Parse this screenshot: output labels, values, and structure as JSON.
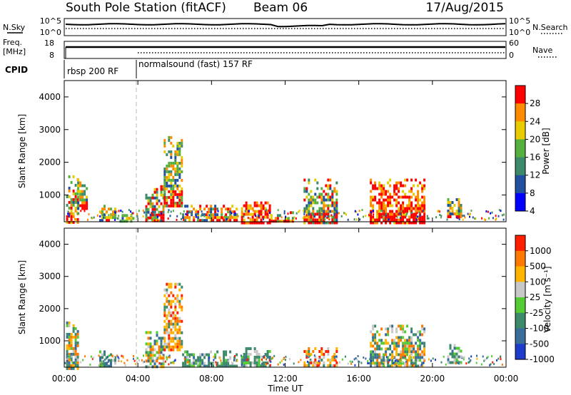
{
  "header": {
    "station": "South Pole Station (fitACF)",
    "beam": "Beam 06",
    "date": "17/Aug/2015"
  },
  "top_panels": {
    "nsky_label": "N.Sky",
    "nsky_ticks": [
      "10^5",
      "10^0"
    ],
    "nsearch_label": "N.Search",
    "nsearch_ticks": [
      "10^5",
      "10^0"
    ],
    "freq_label": "Freq.",
    "freq_unit": "[MHz]",
    "freq_ticks": [
      "18",
      "8"
    ],
    "nave_label": "Nave",
    "nave_ticks": [
      "60",
      "0"
    ],
    "cpid_label": "CPID",
    "cpid_segments": [
      {
        "label": "rbsp 200 RF",
        "start_hour": 0
      },
      {
        "label": "normalsound (fast) 157 RF",
        "start_hour": 4
      }
    ]
  },
  "chart_data": [
    {
      "type": "heatmap",
      "name": "power-panel",
      "ylabel": "Slant Range [km]",
      "xlabel": "Time UT",
      "ylim": [
        180,
        4500
      ],
      "xlim": [
        0,
        24
      ],
      "yticks": [
        "1000",
        "2000",
        "3000",
        "4000"
      ],
      "colorbar": {
        "label": "Power [dB]",
        "ticks": [
          "28",
          "24",
          "20",
          "16",
          "12",
          "8",
          "4"
        ],
        "range": [
          0,
          30
        ],
        "colors": [
          "#0000ff",
          "#2250a0",
          "#3c8a6a",
          "#55b040",
          "#e6cc00",
          "#ff8c00",
          "#ff0000"
        ]
      },
      "echo_regions": [
        {
          "t0": 0.1,
          "t1": 0.7,
          "r0": 180,
          "r1": 1600,
          "level": "mixed-high"
        },
        {
          "t0": 0.7,
          "t1": 1.2,
          "r0": 600,
          "r1": 1500,
          "level": "medium"
        },
        {
          "t0": 1.9,
          "t1": 2.8,
          "r0": 180,
          "r1": 700,
          "level": "medium"
        },
        {
          "t0": 3.0,
          "t1": 3.7,
          "r0": 180,
          "r1": 500,
          "level": "medium"
        },
        {
          "t0": 4.4,
          "t1": 5.4,
          "r0": 180,
          "r1": 1300,
          "level": "mixed"
        },
        {
          "t0": 5.4,
          "t1": 6.4,
          "r0": 700,
          "r1": 2800,
          "level": "medium"
        },
        {
          "t0": 6.4,
          "t1": 9.4,
          "r0": 180,
          "r1": 700,
          "level": "mixed"
        },
        {
          "t0": 9.6,
          "t1": 11.2,
          "r0": 180,
          "r1": 800,
          "level": "high"
        },
        {
          "t0": 11.2,
          "t1": 12.4,
          "r0": 180,
          "r1": 500,
          "level": "mixed"
        },
        {
          "t0": 13.0,
          "t1": 14.8,
          "r0": 180,
          "r1": 1500,
          "level": "mixed-high"
        },
        {
          "t0": 16.6,
          "t1": 19.6,
          "r0": 180,
          "r1": 1500,
          "level": "high"
        },
        {
          "t0": 20.8,
          "t1": 21.6,
          "r0": 300,
          "r1": 900,
          "level": "medium"
        }
      ]
    },
    {
      "type": "heatmap",
      "name": "velocity-panel",
      "ylabel": "Slant Range [km]",
      "xlabel": "Time UT",
      "ylim": [
        180,
        4500
      ],
      "xlim": [
        0,
        24
      ],
      "yticks": [
        "1000",
        "2000",
        "3000",
        "4000"
      ],
      "xticks": [
        "00:00",
        "04:00",
        "08:00",
        "12:00",
        "16:00",
        "20:00",
        "00:00"
      ],
      "colorbar": {
        "label": "Velocity [m s⁻¹]",
        "ticks": [
          "1000",
          "500",
          "100",
          "25",
          "-25",
          "-100",
          "-500",
          "-1000"
        ],
        "colors": [
          "#1e3ccc",
          "#3a6e9a",
          "#3c8a6a",
          "#55cc33",
          "#c8c8c8",
          "#ffb400",
          "#ff7800",
          "#ff1e00"
        ]
      },
      "echo_regions": [
        {
          "t0": 0.1,
          "t1": 0.7,
          "r0": 180,
          "r1": 1600,
          "level": "mixed"
        },
        {
          "t0": 1.9,
          "t1": 2.8,
          "r0": 180,
          "r1": 700,
          "level": "green"
        },
        {
          "t0": 4.4,
          "t1": 5.4,
          "r0": 180,
          "r1": 1300,
          "level": "mixed"
        },
        {
          "t0": 5.4,
          "t1": 6.4,
          "r0": 700,
          "r1": 2800,
          "level": "orange"
        },
        {
          "t0": 6.4,
          "t1": 9.4,
          "r0": 180,
          "r1": 700,
          "level": "green"
        },
        {
          "t0": 9.6,
          "t1": 11.2,
          "r0": 180,
          "r1": 800,
          "level": "green"
        },
        {
          "t0": 13.0,
          "t1": 14.8,
          "r0": 180,
          "r1": 800,
          "level": "orange"
        },
        {
          "t0": 16.6,
          "t1": 19.6,
          "r0": 180,
          "r1": 1500,
          "level": "mixed"
        },
        {
          "t0": 20.8,
          "t1": 21.6,
          "r0": 300,
          "r1": 900,
          "level": "green"
        }
      ]
    }
  ]
}
